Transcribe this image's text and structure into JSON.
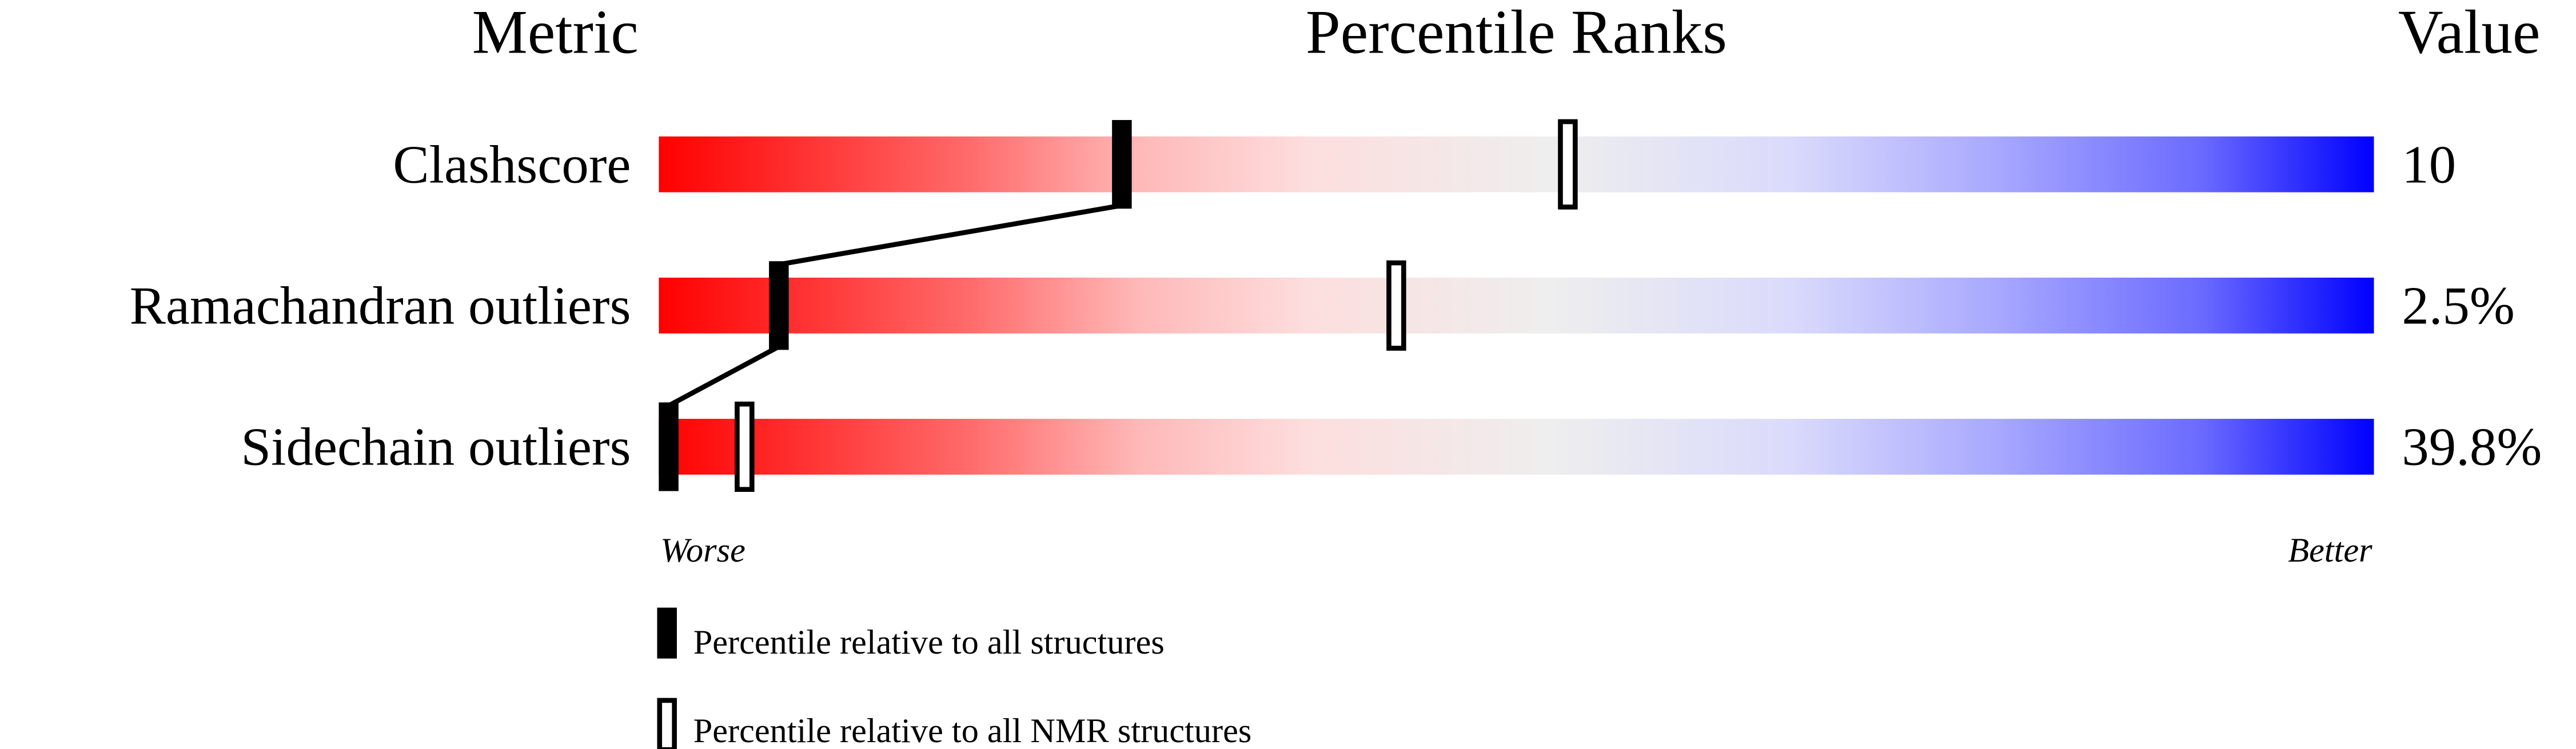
{
  "chart_data": {
    "type": "bar",
    "headers": {
      "metric": "Metric",
      "ranks": "Percentile Ranks",
      "value": "Value"
    },
    "xlim": [
      0,
      100
    ],
    "axis_labels": {
      "left": "Worse",
      "right": "Better"
    },
    "colors": {
      "worse": "#ff0000",
      "middle": "#eeeeee",
      "better": "#0000ff",
      "marker": "#000000"
    },
    "rows": [
      {
        "metric": "Clashscore",
        "value": "10",
        "percentile_all": 27,
        "percentile_nmr": 53
      },
      {
        "metric": "Ramachandran outliers",
        "value": "2.5%",
        "percentile_all": 7,
        "percentile_nmr": 43
      },
      {
        "metric": "Sidechain outliers",
        "value": "39.8%",
        "percentile_all": 0,
        "percentile_nmr": 5
      }
    ],
    "legend": [
      {
        "marker": "filled",
        "label": "Percentile relative to all structures"
      },
      {
        "marker": "open",
        "label": "Percentile relative to all NMR structures"
      }
    ]
  }
}
